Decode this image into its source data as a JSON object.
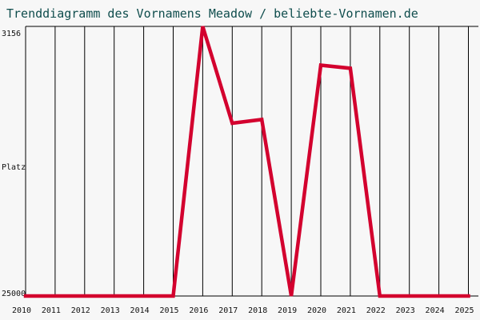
{
  "chart_data": {
    "type": "line",
    "title": "Trenddiagramm des Vornamens Meadow / beliebte-Vornamen.de",
    "ylabel": "Platz",
    "y_top_label": "3156",
    "y_bottom_label": "25000",
    "ylim": [
      3156,
      25000
    ],
    "y_inverted": true,
    "grid": true,
    "x": [
      "2010",
      "2011",
      "2012",
      "2013",
      "2014",
      "2015",
      "2016",
      "2017",
      "2018",
      "2019",
      "2020",
      "2021",
      "2022",
      "2023",
      "2024",
      "2025"
    ],
    "series": [
      {
        "color": "#d3002e",
        "values": [
          25000,
          25000,
          25000,
          25000,
          25000,
          25000,
          3156,
          11000,
          10700,
          25000,
          6300,
          6550,
          25000,
          25000,
          25000,
          25000
        ]
      }
    ]
  }
}
